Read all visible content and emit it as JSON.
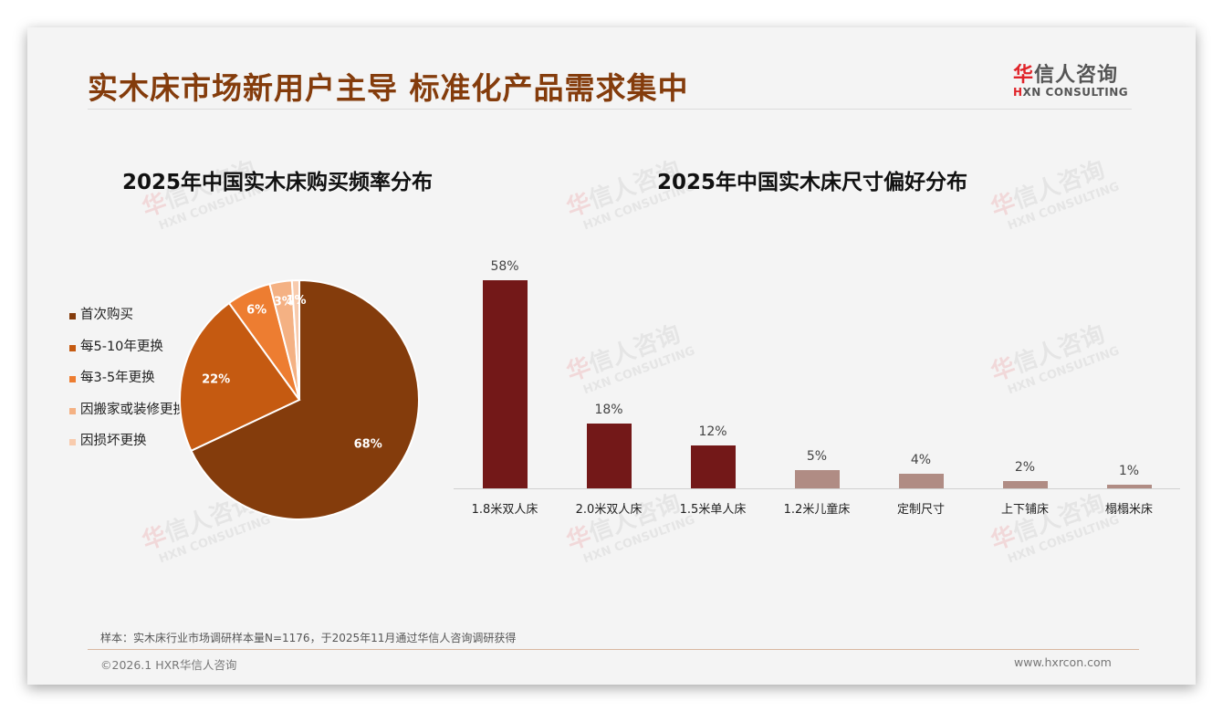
{
  "header": {
    "title": "实木床市场新用户主导 标准化产品需求集中",
    "logo_cn_first": "华",
    "logo_cn_rest": "信人咨询",
    "logo_en_first": "H",
    "logo_en_rest": "XN CONSULTING"
  },
  "watermark": {
    "cn_first": "华",
    "cn_rest": "信人咨询",
    "en": "HXN CONSULTING"
  },
  "colors": {
    "title": "#843C0C",
    "pie": [
      "#843C0C",
      "#C55A11",
      "#ED7D31",
      "#F4B183",
      "#F8CBAD"
    ],
    "bar_dark": "#731818",
    "bar_light": "#B08C84"
  },
  "chart_data": [
    {
      "type": "pie",
      "title": "2025年中国实木床购买频率分布",
      "categories": [
        "首次购买",
        "每5-10年更换",
        "每3-5年更换",
        "因搬家或装修更换",
        "因损坏更换"
      ],
      "values": [
        68,
        22,
        6,
        3,
        1
      ],
      "labels": [
        "68%",
        "22%",
        "6%",
        "3%",
        "1%"
      ],
      "legend_position": "left",
      "start_angle": "12 o'clock, clockwise"
    },
    {
      "type": "bar",
      "title": "2025年中国实木床尺寸偏好分布",
      "categories": [
        "1.8米双人床",
        "2.0米双人床",
        "1.5米单人床",
        "1.2米儿童床",
        "定制尺寸",
        "上下铺床",
        "榻榻米床"
      ],
      "values": [
        58,
        18,
        12,
        5,
        4,
        2,
        1
      ],
      "labels": [
        "58%",
        "18%",
        "12%",
        "5%",
        "4%",
        "2%",
        "1%"
      ],
      "xlabel": "",
      "ylabel": "",
      "grid": false,
      "ylim": [
        0,
        60
      ]
    }
  ],
  "footer": {
    "note": "样本：实木床行业市场调研样本量N=1176，于2025年11月通过华信人咨询调研获得",
    "copyright": "©2026.1 HXR华信人咨询",
    "website": "www.hxrcon.com"
  }
}
